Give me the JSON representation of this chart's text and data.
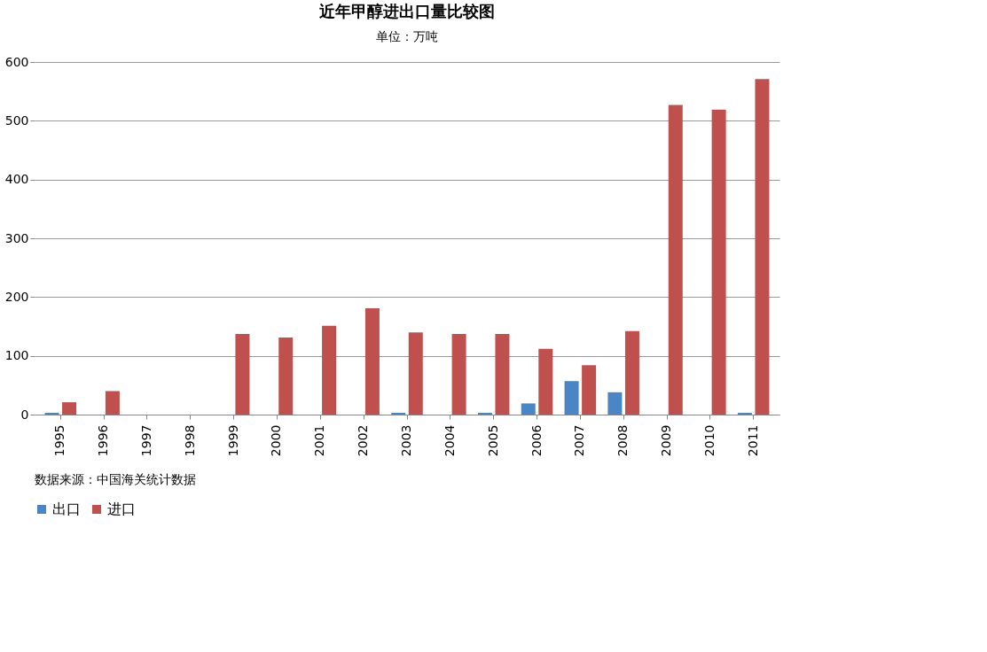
{
  "chart_data": {
    "type": "bar",
    "title": "近年甲醇进出口量比较图",
    "subtitle": "单位：万吨",
    "categories": [
      "1995",
      "1996",
      "1997",
      "1998",
      "1999",
      "2000",
      "2001",
      "2002",
      "2003",
      "2004",
      "2005",
      "2006",
      "2007",
      "2008",
      "2009",
      "2010",
      "2011"
    ],
    "series": [
      {
        "name": "出口",
        "color": "#4a86c5",
        "values": [
          3,
          0,
          0,
          0,
          0,
          0,
          0,
          0,
          3,
          0,
          3,
          19,
          57,
          38,
          0,
          0,
          3
        ]
      },
      {
        "name": "进口",
        "color": "#c0504d",
        "values": [
          21,
          40,
          0,
          0,
          137,
          131,
          151,
          181,
          140,
          137,
          137,
          112,
          84,
          142,
          527,
          519,
          571
        ]
      }
    ],
    "ylim": [
      0,
      600
    ],
    "yticks": [
      0,
      100,
      200,
      300,
      400,
      500,
      600
    ],
    "grid": "y",
    "legend": "bottom",
    "annotations": [
      "数据来源：中国海关统计数据"
    ]
  }
}
